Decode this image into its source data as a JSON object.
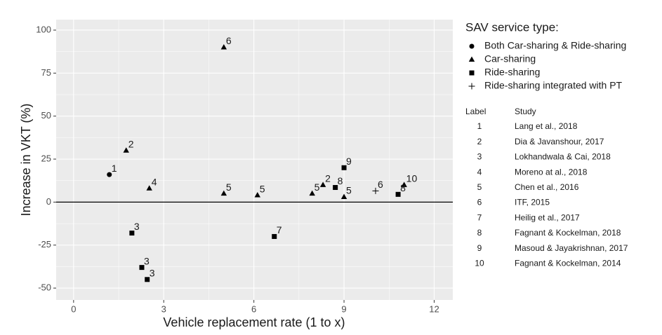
{
  "chart_data": {
    "type": "scatter",
    "x_label": "Vehicle replacement rate (1 to x)",
    "y_label": "Increase in VKT (%)",
    "xlim": [
      -0.58,
      12.62
    ],
    "ylim": [
      -56.9,
      106.1
    ],
    "xticks": [
      0,
      3,
      6,
      9,
      12
    ],
    "yticks": [
      -50,
      -25,
      0,
      25,
      50,
      75,
      100
    ],
    "grid": true,
    "hline": 0,
    "legend_title": "SAV service type:",
    "series": [
      {
        "name": "Both Car-sharing & Ride-sharing",
        "shape": "circle",
        "color": "#000000",
        "x": [
          1.19
        ],
        "values": [
          16
        ],
        "labels": [
          "1"
        ]
      },
      {
        "name": "Car-sharing",
        "shape": "triangle",
        "color": "#000000",
        "x": [
          1.75,
          2.52,
          5,
          5,
          6.12,
          7.94,
          8.3,
          9,
          11
        ],
        "values": [
          30,
          8,
          90,
          5,
          4,
          5,
          10,
          3,
          10
        ],
        "labels": [
          "2",
          "4",
          "6",
          "5",
          "5",
          "5",
          "2",
          "5",
          "10"
        ]
      },
      {
        "name": "Ride-sharing",
        "shape": "square",
        "color": "#000000",
        "x": [
          1.94,
          2.27,
          2.45,
          6.68,
          8.71,
          9,
          10.8
        ],
        "values": [
          -18,
          -38,
          -45,
          -20,
          8.5,
          20,
          4.5
        ],
        "labels": [
          "3",
          "3",
          "3",
          "7",
          "8",
          "9",
          "8"
        ]
      },
      {
        "name": "Ride-sharing integrated with PT",
        "shape": "plus",
        "color": "#000000",
        "x": [
          10.05
        ],
        "values": [
          6.5
        ],
        "labels": [
          "6"
        ]
      }
    ],
    "study_table": {
      "columns": [
        "Label",
        "Study"
      ],
      "rows": [
        [
          "1",
          "Lang et al., 2018"
        ],
        [
          "2",
          "Dia & Javanshour, 2017"
        ],
        [
          "3",
          "Lokhandwala & Cai, 2018"
        ],
        [
          "4",
          "Moreno at al., 2018"
        ],
        [
          "5",
          "Chen et al., 2016"
        ],
        [
          "6",
          "ITF, 2015"
        ],
        [
          "7",
          "Heilig et al., 2017"
        ],
        [
          "8",
          "Fagnant & Kockelman, 2018"
        ],
        [
          "9",
          "Masoud & Jayakrishnan, 2017"
        ],
        [
          "10",
          "Fagnant & Kockelman, 2014"
        ]
      ]
    }
  }
}
